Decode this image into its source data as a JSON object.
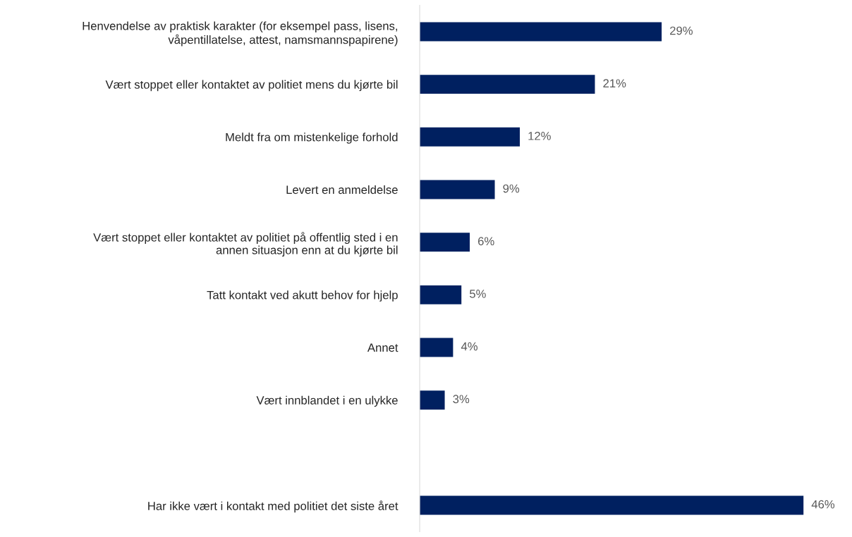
{
  "chart_data": {
    "type": "bar",
    "orientation": "horizontal",
    "categories": [
      "Henvendelse av praktisk karakter (for eksempel pass, lisens,\nvåpentillatelse, attest, namsmannspapirene)",
      "Vært stoppet eller kontaktet av politiet mens du kjørte bil",
      "Meldt fra om mistenkelige forhold",
      "Levert en anmeldelse",
      "Vært stoppet eller kontaktet av politiet på offentlig sted i en\nannen situasjon enn at du kjørte bil",
      "Tatt kontakt ved akutt behov for hjelp",
      "Annet",
      "Vært innblandet i en ulykke",
      null,
      "Har ikke vært i kontakt med politiet det siste året"
    ],
    "values": [
      29,
      21,
      12,
      9,
      6,
      5,
      4,
      3,
      null,
      46
    ],
    "value_labels": [
      "29%",
      "21%",
      "12%",
      "9%",
      "6%",
      "5%",
      "4%",
      "3%",
      null,
      "46%"
    ],
    "color": "#002060",
    "grid": false,
    "legend": false,
    "tick_labels": "y"
  }
}
